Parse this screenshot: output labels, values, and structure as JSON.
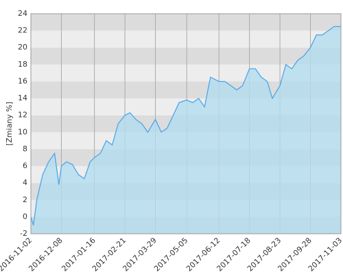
{
  "chart_data": {
    "type": "area",
    "y_label": "[Zmiany %]",
    "x": [
      "2016-11-02",
      "2016-11-05",
      "2016-11-09",
      "2016-11-16",
      "2016-11-23",
      "2016-11-30",
      "2016-12-05",
      "2016-12-08",
      "2016-12-14",
      "2016-12-21",
      "2016-12-28",
      "2017-01-04",
      "2017-01-11",
      "2017-01-16",
      "2017-01-23",
      "2017-01-30",
      "2017-02-06",
      "2017-02-13",
      "2017-02-21",
      "2017-02-27",
      "2017-03-06",
      "2017-03-13",
      "2017-03-20",
      "2017-03-29",
      "2017-04-05",
      "2017-04-12",
      "2017-04-19",
      "2017-04-26",
      "2017-05-05",
      "2017-05-12",
      "2017-05-19",
      "2017-05-26",
      "2017-06-02",
      "2017-06-12",
      "2017-06-19",
      "2017-06-26",
      "2017-07-03",
      "2017-07-10",
      "2017-07-18",
      "2017-07-25",
      "2017-08-01",
      "2017-08-08",
      "2017-08-14",
      "2017-08-23",
      "2017-08-30",
      "2017-09-06",
      "2017-09-13",
      "2017-09-20",
      "2017-09-28",
      "2017-10-05",
      "2017-10-12",
      "2017-10-19",
      "2017-10-26",
      "2017-11-03"
    ],
    "series": [
      {
        "color": "#4da6e8",
        "fill_color": "#b3dcef",
        "values": [
          0,
          -1,
          2,
          5,
          6.5,
          7.5,
          3.8,
          6,
          6.5,
          6.2,
          5,
          4.5,
          6.5,
          7,
          7.5,
          9,
          8.5,
          11,
          12,
          12.3,
          11.5,
          11,
          10,
          11.5,
          10,
          10.5,
          12,
          13.5,
          13.8,
          13.5,
          14,
          13,
          16.5,
          16,
          16,
          15.5,
          15,
          15.5,
          17.5,
          17.5,
          16.5,
          16,
          14,
          15.5,
          18,
          17.5,
          18.5,
          19,
          20,
          21.5,
          21.5,
          22,
          22.5,
          22.5
        ]
      }
    ],
    "xlim": [
      "2016-11-02",
      "2017-11-03"
    ],
    "xticks": [
      "2016-11-02",
      "2016-12-08",
      "2017-01-16",
      "2017-02-21",
      "2017-03-29",
      "2017-05-05",
      "2017-06-12",
      "2017-07-18",
      "2017-08-23",
      "2017-09-28",
      "2017-11-03"
    ],
    "ylim": [
      -2,
      24
    ],
    "yticks": [
      -2,
      0,
      2,
      4,
      6,
      8,
      10,
      12,
      14,
      16,
      18,
      20,
      22,
      24
    ],
    "grid": true,
    "band_colors": [
      "#dcdcdc",
      "#ededed"
    ]
  }
}
